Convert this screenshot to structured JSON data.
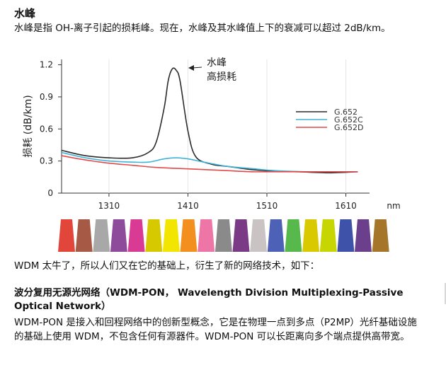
{
  "section1": {
    "title": "水峰",
    "text": "水峰是指 OH-离子引起的损耗峰。现在，水峰及其水峰值上下的衰减可以超过 2dB/km。"
  },
  "chart_data": {
    "type": "line",
    "ylabel": "损耗 (dB/km)",
    "xlabel": "nm",
    "x_ticks": [
      1310,
      1410,
      1510,
      1610
    ],
    "y_ticks": [
      0,
      0.3,
      0.6,
      0.9,
      1.2
    ],
    "y_tick_labels": [
      "0",
      "0.3",
      "0.6",
      "0.9",
      "1.2"
    ],
    "xlim": [
      1250,
      1640
    ],
    "ylim": [
      0,
      1.25
    ],
    "annotation": "水峰\n高损耗",
    "annotation_lines": [
      "水峰",
      "高损耗"
    ],
    "series": [
      {
        "name": "G.652",
        "color": "#2b2b2b",
        "x": [
          1250,
          1280,
          1310,
          1340,
          1360,
          1370,
          1380,
          1385,
          1390,
          1395,
          1400,
          1410,
          1420,
          1440,
          1460,
          1490,
          1510,
          1550,
          1590,
          1625
        ],
        "y": [
          0.4,
          0.35,
          0.33,
          0.33,
          0.38,
          0.48,
          0.8,
          1.05,
          1.16,
          1.15,
          1.05,
          0.58,
          0.34,
          0.27,
          0.25,
          0.22,
          0.21,
          0.2,
          0.19,
          0.2
        ]
      },
      {
        "name": "G.652C",
        "color": "#3fb3d8",
        "x": [
          1250,
          1280,
          1310,
          1340,
          1360,
          1380,
          1395,
          1410,
          1430,
          1460,
          1490,
          1520,
          1560,
          1600,
          1625
        ],
        "y": [
          0.38,
          0.33,
          0.3,
          0.29,
          0.29,
          0.32,
          0.33,
          0.32,
          0.29,
          0.25,
          0.23,
          0.21,
          0.2,
          0.2,
          0.2
        ]
      },
      {
        "name": "G.652D",
        "color": "#e04a4a",
        "x": [
          1250,
          1280,
          1310,
          1340,
          1370,
          1400,
          1430,
          1460,
          1490,
          1520,
          1560,
          1600,
          1625
        ],
        "y": [
          0.35,
          0.31,
          0.28,
          0.26,
          0.24,
          0.23,
          0.22,
          0.21,
          0.2,
          0.2,
          0.2,
          0.2,
          0.2
        ]
      }
    ],
    "channel_colors": [
      "#e2463b",
      "#a65a45",
      "#a8a8a8",
      "#8e4b9c",
      "#d93a93",
      "#d7c900",
      "#f2e600",
      "#f28f1f",
      "#ee76a6",
      "#8a8a8a",
      "#7b3a86",
      "#c9c3c3",
      "#4d62b6",
      "#57b84b",
      "#d9c900",
      "#c7d600",
      "#3d52a8",
      "#6b3f8c",
      "#a5752a"
    ]
  },
  "section2": {
    "text": "WDM 太牛了，所以人们又在它的基础上，衍生了新的网络技术，如下："
  },
  "section3": {
    "heading_line1": "波分复用无源光网络（WDM-PON， Wavelength Division Multiplexing-Passive",
    "heading_line2": "Optical Network）",
    "text": "WDM-PON 是接入和回程网络中的创新型概念，它是在物理一点到多点（P2MP）光纤基础设施的基础上使用 WDM，不包含任何有源器件。WDM-PON 可以长距离向多个端点提供高带宽。"
  }
}
